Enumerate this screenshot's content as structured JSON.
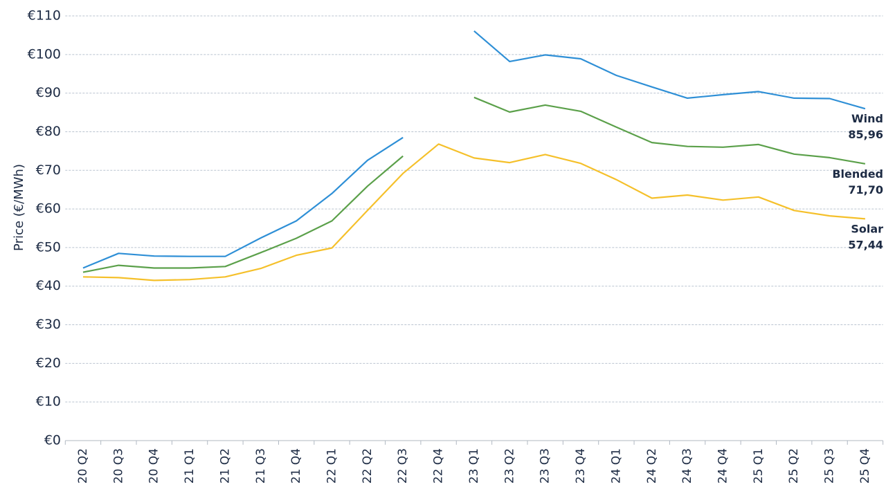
{
  "chart_data": {
    "type": "line",
    "y_label": "Price (€/MWh)",
    "categories": [
      "20 Q2",
      "20 Q3",
      "20 Q4",
      "21 Q1",
      "21 Q2",
      "21 Q3",
      "21 Q4",
      "22 Q1",
      "22 Q2",
      "22 Q3",
      "22 Q4",
      "23 Q1",
      "23 Q2",
      "23 Q3",
      "23 Q4",
      "24 Q1",
      "24 Q2",
      "24 Q3",
      "24 Q4",
      "25 Q1",
      "25 Q2",
      "25 Q3",
      "25 Q4"
    ],
    "series": [
      {
        "name": "Wind",
        "color": "#2e8fd6",
        "values": [
          44.7,
          48.5,
          47.8,
          47.7,
          47.7,
          52.5,
          56.9,
          64.0,
          72.6,
          78.5,
          null,
          106.1,
          98.2,
          99.9,
          98.9,
          94.6,
          91.6,
          88.7,
          89.6,
          90.4,
          88.7,
          88.6,
          85.96
        ],
        "value_labels": [
          null,
          null,
          null,
          null,
          null,
          null,
          null,
          null,
          null,
          null,
          null,
          null,
          null,
          null,
          null,
          null,
          null,
          null,
          null,
          null,
          null,
          null,
          "85,96"
        ]
      },
      {
        "name": "Blended",
        "color": "#5ba04a",
        "values": [
          43.6,
          45.4,
          44.7,
          44.7,
          45.1,
          48.7,
          52.4,
          56.9,
          65.9,
          73.7,
          null,
          88.9,
          85.1,
          86.9,
          85.3,
          81.2,
          77.2,
          76.2,
          76.0,
          76.7,
          74.2,
          73.3,
          71.7
        ],
        "value_labels": [
          null,
          null,
          null,
          null,
          null,
          null,
          null,
          null,
          null,
          null,
          null,
          null,
          null,
          null,
          null,
          null,
          null,
          null,
          null,
          null,
          null,
          null,
          "71,70"
        ]
      },
      {
        "name": "Solar",
        "color": "#f5c02a",
        "values": [
          42.4,
          42.2,
          41.5,
          41.7,
          42.4,
          44.6,
          48.0,
          49.9,
          59.6,
          69.2,
          76.8,
          73.2,
          72.0,
          74.1,
          71.8,
          67.6,
          62.8,
          63.6,
          62.3,
          63.1,
          59.6,
          58.2,
          57.44
        ],
        "value_labels": [
          null,
          null,
          null,
          null,
          null,
          null,
          null,
          null,
          null,
          null,
          null,
          null,
          null,
          null,
          null,
          null,
          null,
          null,
          null,
          null,
          null,
          null,
          "57,44"
        ]
      }
    ],
    "ylim": [
      0,
      110
    ],
    "yticks": [
      {
        "value": 0,
        "label": "€0"
      },
      {
        "value": 10,
        "label": "€10"
      },
      {
        "value": 20,
        "label": "€20"
      },
      {
        "value": 30,
        "label": "€30"
      },
      {
        "value": 40,
        "label": "€40"
      },
      {
        "value": 50,
        "label": "€50"
      },
      {
        "value": 60,
        "label": "€60"
      },
      {
        "value": 70,
        "label": "€70"
      },
      {
        "value": 80,
        "label": "€80"
      },
      {
        "value": 90,
        "label": "€90"
      },
      {
        "value": 100,
        "label": "€100"
      },
      {
        "value": 110,
        "label": "€110"
      }
    ],
    "grid": true
  }
}
